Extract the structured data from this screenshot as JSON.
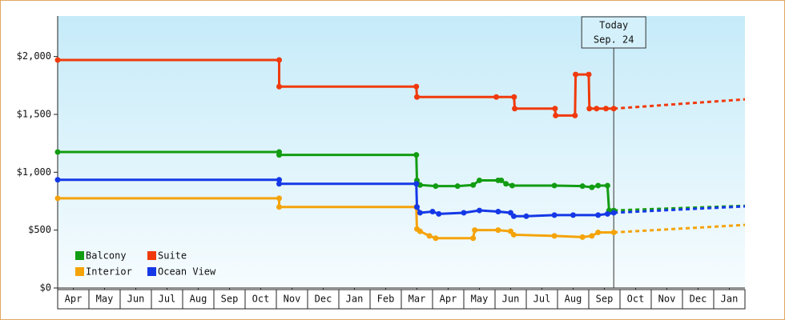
{
  "chart_data": {
    "type": "step-line",
    "annotation": {
      "lines": [
        "Today",
        "Sep. 24"
      ],
      "x": 17.8
    },
    "xlim": [
      0,
      22
    ],
    "xticks": [
      {
        "value": 0.5,
        "label": "Apr"
      },
      {
        "value": 1.5,
        "label": "May"
      },
      {
        "value": 2.5,
        "label": "Jun"
      },
      {
        "value": 3.5,
        "label": "Jul"
      },
      {
        "value": 4.5,
        "label": "Aug"
      },
      {
        "value": 5.5,
        "label": "Sep"
      },
      {
        "value": 6.5,
        "label": "Oct"
      },
      {
        "value": 7.5,
        "label": "Nov"
      },
      {
        "value": 8.5,
        "label": "Dec"
      },
      {
        "value": 9.5,
        "label": "Jan"
      },
      {
        "value": 10.5,
        "label": "Feb"
      },
      {
        "value": 11.5,
        "label": "Mar"
      },
      {
        "value": 12.5,
        "label": "Apr"
      },
      {
        "value": 13.5,
        "label": "May"
      },
      {
        "value": 14.5,
        "label": "Jun"
      },
      {
        "value": 15.5,
        "label": "Jul"
      },
      {
        "value": 16.5,
        "label": "Aug"
      },
      {
        "value": 17.5,
        "label": "Sep"
      },
      {
        "value": 18.5,
        "label": "Oct"
      },
      {
        "value": 19.5,
        "label": "Nov"
      },
      {
        "value": 20.5,
        "label": "Dec"
      },
      {
        "value": 21.5,
        "label": "Jan"
      }
    ],
    "ylim": [
      0,
      2350
    ],
    "yticks": [
      {
        "value": 0,
        "label": "$0"
      },
      {
        "value": 500,
        "label": "$500"
      },
      {
        "value": 1000,
        "label": "$1,000"
      },
      {
        "value": 1500,
        "label": "$1,500"
      },
      {
        "value": 2000,
        "label": "$2,000"
      }
    ],
    "legend": "lower left",
    "series": [
      {
        "name": "Balcony",
        "color": "#129c12",
        "x": [
          0,
          7.09,
          7.09,
          11.48,
          11.5,
          11.6,
          12.1,
          12.8,
          13.3,
          13.5,
          14.1,
          14.2,
          14.35,
          14.55,
          15.9,
          16.8,
          17.1,
          17.3,
          17.6,
          17.65,
          17.8
        ],
        "values": [
          1175,
          1175,
          1150,
          1150,
          930,
          890,
          880,
          880,
          890,
          930,
          930,
          930,
          900,
          885,
          885,
          880,
          870,
          885,
          885,
          670,
          670
        ],
        "forecast_x": [
          17.8,
          22
        ],
        "forecast_values": [
          670,
          710
        ]
      },
      {
        "name": "Suite",
        "color": "#f03a0c",
        "x": [
          0,
          7.09,
          7.09,
          11.48,
          11.5,
          14.04,
          14.61,
          14.63,
          15.92,
          15.94,
          16.56,
          16.58,
          17.0,
          17.02,
          17.25,
          17.55,
          17.8
        ],
        "values": [
          1970,
          1970,
          1740,
          1740,
          1650,
          1650,
          1650,
          1550,
          1550,
          1490,
          1490,
          1845,
          1845,
          1550,
          1550,
          1550,
          1550
        ],
        "forecast_x": [
          17.8,
          22
        ],
        "forecast_values": [
          1550,
          1630
        ]
      },
      {
        "name": "Interior",
        "color": "#f5a30a",
        "x": [
          0,
          7.09,
          7.09,
          11.48,
          11.5,
          11.6,
          11.9,
          12.1,
          13.3,
          13.35,
          14.1,
          14.5,
          14.6,
          15.9,
          16.8,
          17.1,
          17.3,
          17.8
        ],
        "values": [
          775,
          775,
          700,
          700,
          510,
          490,
          450,
          430,
          430,
          500,
          500,
          490,
          460,
          450,
          440,
          450,
          480,
          480
        ],
        "forecast_x": [
          17.8,
          22
        ],
        "forecast_values": [
          480,
          545
        ]
      },
      {
        "name": "Ocean View",
        "color": "#1538e6",
        "x": [
          0,
          7.09,
          7.09,
          11.48,
          11.5,
          11.6,
          12.0,
          12.2,
          13.0,
          13.5,
          14.1,
          14.5,
          14.6,
          15.0,
          15.9,
          16.5,
          17.3,
          17.6,
          17.8
        ],
        "values": [
          935,
          935,
          900,
          900,
          700,
          650,
          660,
          640,
          650,
          670,
          660,
          650,
          620,
          620,
          630,
          630,
          630,
          640,
          650
        ],
        "forecast_x": [
          17.8,
          22
        ],
        "forecast_values": [
          650,
          705
        ]
      }
    ]
  }
}
